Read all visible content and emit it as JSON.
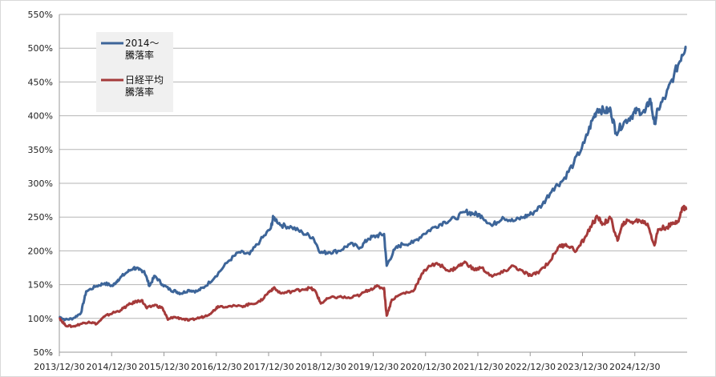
{
  "chart_data": {
    "type": "line",
    "title": "",
    "xlabel": "",
    "ylabel": "",
    "ylim": [
      50,
      550
    ],
    "yticks": [
      "50%",
      "100%",
      "150%",
      "200%",
      "250%",
      "300%",
      "350%",
      "400%",
      "450%",
      "500%",
      "550%"
    ],
    "ytick_values": [
      50,
      100,
      150,
      200,
      250,
      300,
      350,
      400,
      450,
      500,
      550
    ],
    "xticks": [
      "2013/12/30",
      "2014/12/30",
      "2015/12/30",
      "2016/12/30",
      "2017/12/30",
      "2018/12/30",
      "2019/12/30",
      "2020/12/30",
      "2021/12/30",
      "2022/12/30",
      "2023/12/30",
      "2024/12/30"
    ],
    "xlim": [
      2013.99,
      2025.9
    ],
    "grid": "horizontal",
    "legend": "top-left",
    "series": [
      {
        "name_lines": [
          "2014〜",
          "騰落率"
        ],
        "color": "#3d6599",
        "points": [
          [
            2014.0,
            102
          ],
          [
            2014.1,
            98
          ],
          [
            2014.25,
            100
          ],
          [
            2014.4,
            108
          ],
          [
            2014.5,
            140
          ],
          [
            2014.7,
            148
          ],
          [
            2014.85,
            152
          ],
          [
            2015.0,
            148
          ],
          [
            2015.1,
            157
          ],
          [
            2015.25,
            167
          ],
          [
            2015.4,
            175
          ],
          [
            2015.5,
            172
          ],
          [
            2015.6,
            170
          ],
          [
            2015.7,
            148
          ],
          [
            2015.8,
            163
          ],
          [
            2015.95,
            150
          ],
          [
            2016.1,
            142
          ],
          [
            2016.2,
            140
          ],
          [
            2016.3,
            137
          ],
          [
            2016.45,
            142
          ],
          [
            2016.6,
            140
          ],
          [
            2016.75,
            147
          ],
          [
            2016.95,
            162
          ],
          [
            2017.2,
            185
          ],
          [
            2017.4,
            198
          ],
          [
            2017.6,
            195
          ],
          [
            2017.8,
            215
          ],
          [
            2018.0,
            233
          ],
          [
            2018.05,
            250
          ],
          [
            2018.2,
            238
          ],
          [
            2018.4,
            235
          ],
          [
            2018.6,
            227
          ],
          [
            2018.8,
            220
          ],
          [
            2018.95,
            197
          ],
          [
            2019.1,
            198
          ],
          [
            2019.3,
            200
          ],
          [
            2019.5,
            210
          ],
          [
            2019.7,
            205
          ],
          [
            2019.85,
            218
          ],
          [
            2020.0,
            222
          ],
          [
            2020.15,
            225
          ],
          [
            2020.2,
            178
          ],
          [
            2020.35,
            202
          ],
          [
            2020.5,
            210
          ],
          [
            2020.7,
            212
          ],
          [
            2020.9,
            225
          ],
          [
            2021.1,
            235
          ],
          [
            2021.3,
            243
          ],
          [
            2021.5,
            248
          ],
          [
            2021.7,
            258
          ],
          [
            2021.85,
            255
          ],
          [
            2022.0,
            252
          ],
          [
            2022.2,
            237
          ],
          [
            2022.4,
            250
          ],
          [
            2022.6,
            244
          ],
          [
            2022.8,
            250
          ],
          [
            2022.95,
            255
          ],
          [
            2023.15,
            268
          ],
          [
            2023.35,
            292
          ],
          [
            2023.55,
            305
          ],
          [
            2023.75,
            330
          ],
          [
            2023.95,
            360
          ],
          [
            2024.1,
            393
          ],
          [
            2024.2,
            410
          ],
          [
            2024.35,
            407
          ],
          [
            2024.45,
            408
          ],
          [
            2024.55,
            375
          ],
          [
            2024.7,
            390
          ],
          [
            2024.85,
            400
          ],
          [
            2024.95,
            408
          ],
          [
            2025.1,
            405
          ],
          [
            2025.2,
            425
          ],
          [
            2025.28,
            388
          ],
          [
            2025.35,
            410
          ],
          [
            2025.5,
            430
          ],
          [
            2025.65,
            460
          ],
          [
            2025.8,
            490
          ],
          [
            2025.87,
            502
          ]
        ]
      },
      {
        "name_lines": [
          "日経平均",
          "騰落率"
        ],
        "color": "#a53a3a",
        "points": [
          [
            2014.0,
            100
          ],
          [
            2014.1,
            90
          ],
          [
            2014.25,
            88
          ],
          [
            2014.4,
            92
          ],
          [
            2014.55,
            95
          ],
          [
            2014.7,
            92
          ],
          [
            2014.85,
            103
          ],
          [
            2015.0,
            108
          ],
          [
            2015.15,
            112
          ],
          [
            2015.3,
            120
          ],
          [
            2015.45,
            125
          ],
          [
            2015.55,
            127
          ],
          [
            2015.65,
            115
          ],
          [
            2015.8,
            120
          ],
          [
            2015.95,
            115
          ],
          [
            2016.05,
            98
          ],
          [
            2016.15,
            102
          ],
          [
            2016.3,
            100
          ],
          [
            2016.45,
            97
          ],
          [
            2016.6,
            100
          ],
          [
            2016.75,
            103
          ],
          [
            2016.9,
            110
          ],
          [
            2017.0,
            118
          ],
          [
            2017.2,
            118
          ],
          [
            2017.45,
            118
          ],
          [
            2017.6,
            121
          ],
          [
            2017.8,
            125
          ],
          [
            2017.95,
            138
          ],
          [
            2018.05,
            145
          ],
          [
            2018.2,
            137
          ],
          [
            2018.4,
            140
          ],
          [
            2018.6,
            143
          ],
          [
            2018.75,
            145
          ],
          [
            2018.85,
            140
          ],
          [
            2018.95,
            122
          ],
          [
            2019.1,
            130
          ],
          [
            2019.3,
            132
          ],
          [
            2019.5,
            130
          ],
          [
            2019.7,
            135
          ],
          [
            2019.85,
            142
          ],
          [
            2020.0,
            147
          ],
          [
            2020.15,
            145
          ],
          [
            2020.2,
            104
          ],
          [
            2020.3,
            128
          ],
          [
            2020.5,
            137
          ],
          [
            2020.7,
            140
          ],
          [
            2020.85,
            163
          ],
          [
            2021.0,
            178
          ],
          [
            2021.2,
            180
          ],
          [
            2021.4,
            170
          ],
          [
            2021.55,
            177
          ],
          [
            2021.7,
            183
          ],
          [
            2021.85,
            172
          ],
          [
            2022.0,
            175
          ],
          [
            2022.2,
            162
          ],
          [
            2022.4,
            168
          ],
          [
            2022.6,
            178
          ],
          [
            2022.8,
            168
          ],
          [
            2022.95,
            163
          ],
          [
            2023.1,
            170
          ],
          [
            2023.3,
            185
          ],
          [
            2023.45,
            205
          ],
          [
            2023.6,
            210
          ],
          [
            2023.8,
            200
          ],
          [
            2023.95,
            218
          ],
          [
            2024.1,
            240
          ],
          [
            2024.2,
            250
          ],
          [
            2024.3,
            240
          ],
          [
            2024.45,
            248
          ],
          [
            2024.58,
            215
          ],
          [
            2024.7,
            243
          ],
          [
            2024.85,
            243
          ],
          [
            2025.0,
            245
          ],
          [
            2025.15,
            240
          ],
          [
            2025.28,
            208
          ],
          [
            2025.35,
            232
          ],
          [
            2025.5,
            235
          ],
          [
            2025.65,
            240
          ],
          [
            2025.75,
            248
          ],
          [
            2025.82,
            265
          ],
          [
            2025.88,
            262
          ]
        ]
      }
    ]
  }
}
